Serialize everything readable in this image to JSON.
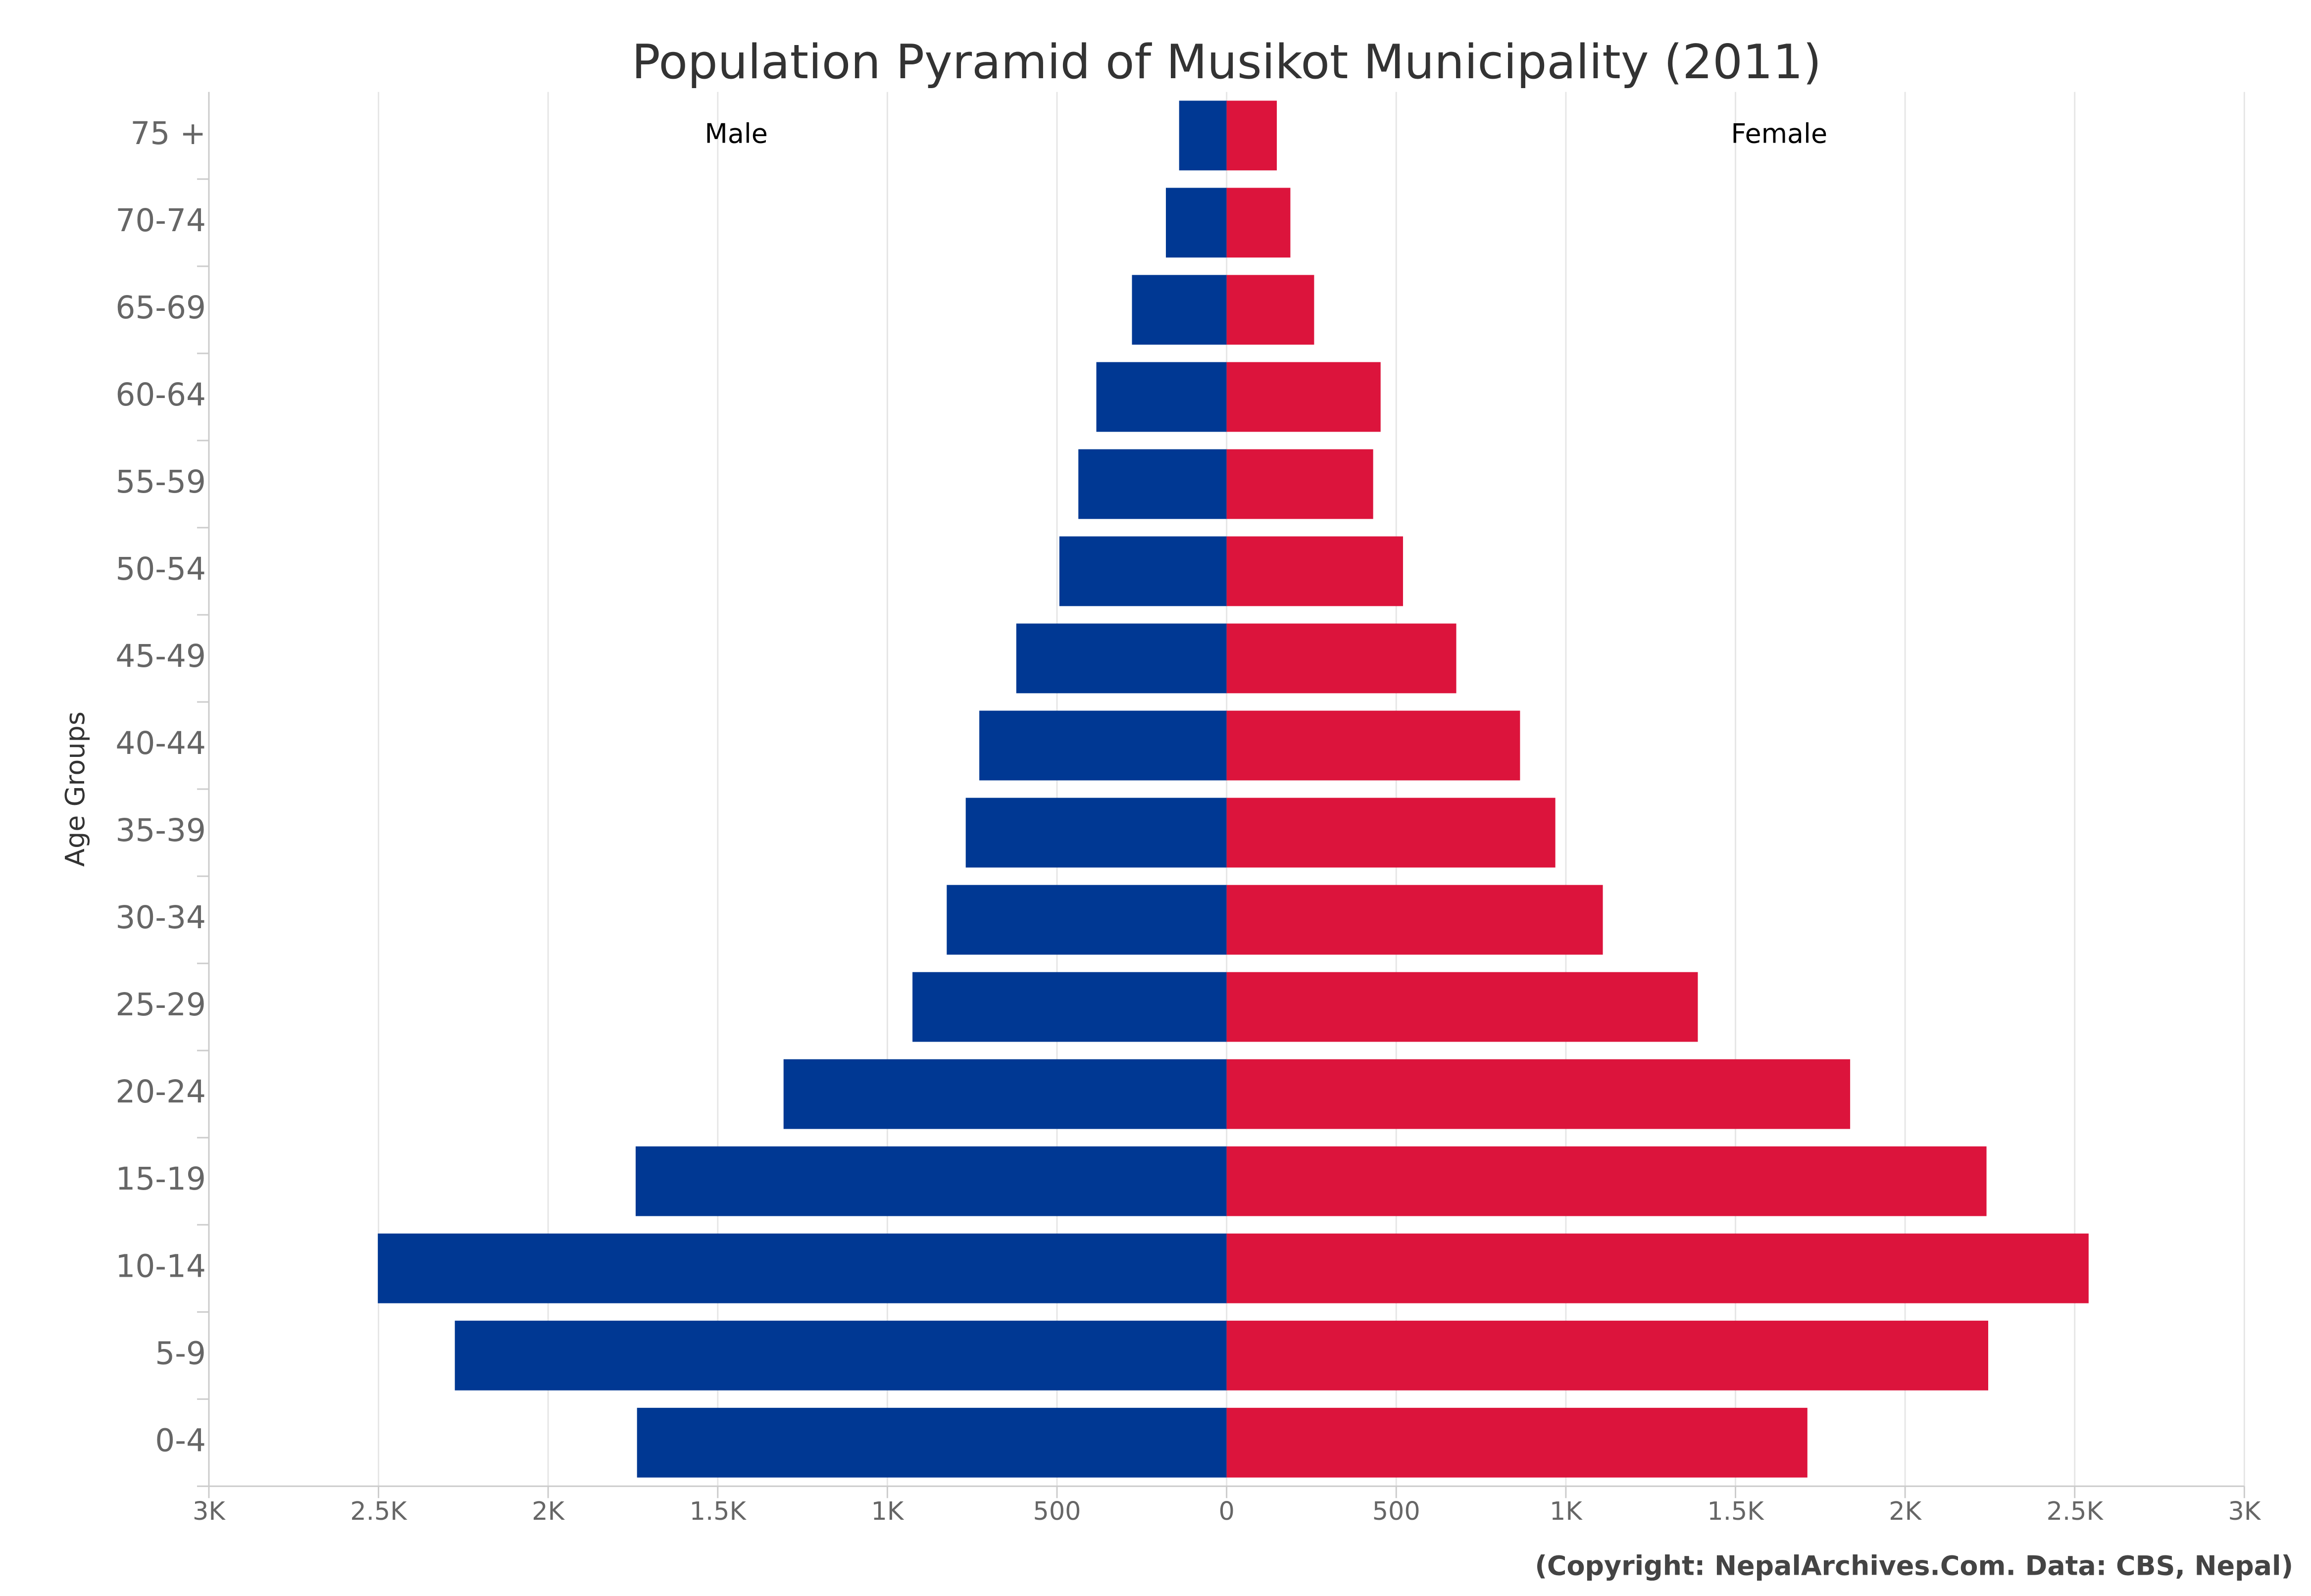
{
  "chart_data": {
    "type": "pyramid",
    "title": "Population Pyramid of Musikot Municipality (2011)",
    "y_axis_title": "Age Groups",
    "credit": "(Copyright: NepalArchives.Com. Data: CBS, Nepal)",
    "categories": [
      "0-4",
      "5-9",
      "10-14",
      "15-19",
      "20-24",
      "25-29",
      "30-34",
      "35-39",
      "40-44",
      "45-49",
      "50-54",
      "55-59",
      "60-64",
      "65-69",
      "70-74",
      "75 +"
    ],
    "series": [
      {
        "name": "Male",
        "color": "#003893",
        "values": [
          -1738,
          -2275,
          -2502,
          -1742,
          -1306,
          -926,
          -825,
          -769,
          -729,
          -620,
          -493,
          -437,
          -384,
          -279,
          -179,
          -140
        ]
      },
      {
        "name": "Female",
        "color": "#dc143c",
        "values": [
          1712,
          2245,
          2541,
          2240,
          1838,
          1389,
          1109,
          969,
          865,
          677,
          520,
          432,
          454,
          258,
          188,
          148
        ]
      }
    ],
    "xlim": [
      -3000,
      3000
    ],
    "xticks": [
      {
        "value": -3000,
        "label": "3K"
      },
      {
        "value": -2500,
        "label": "2.5K"
      },
      {
        "value": -2000,
        "label": "2K"
      },
      {
        "value": -1500,
        "label": "1.5K"
      },
      {
        "value": -1000,
        "label": "1K"
      },
      {
        "value": -500,
        "label": "500"
      },
      0,
      500,
      {
        "value": 1000,
        "label": "1K"
      },
      {
        "value": 1500,
        "label": "1.5K"
      },
      {
        "value": 2000,
        "label": "2K"
      },
      {
        "value": 2500,
        "label": "2.5K"
      },
      {
        "value": 3000,
        "label": "3K"
      }
    ],
    "grid": true
  }
}
